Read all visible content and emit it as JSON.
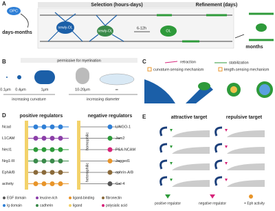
{
  "panels": {
    "a": {
      "letter": "A",
      "selection": "Selection (hours-days)",
      "refinement": "Refinement (days)",
      "opc": "OPC",
      "days_months": "days-months",
      "newly_ol_1": "newly-OL",
      "newly_ol_2": "newly-OL",
      "time": "6-12h",
      "ol": "OL",
      "months": "months"
    },
    "b": {
      "letter": "B",
      "permissive": "permissive for myelination",
      "sizes": [
        "0.1μm",
        "0.4μm",
        "1μm",
        "10-20μm",
        "∞"
      ],
      "curvature": "increasing curvature",
      "diameter": "increasing diameter"
    },
    "c": {
      "letter": "C",
      "retraction": "retraction",
      "stabilization": "stabilization",
      "curvature_sensing": "curvature-sensing mechanism",
      "length_sensing": "length-sensing mechanism"
    },
    "d": {
      "letter": "D",
      "positive_title": "positive regulators",
      "negative_title": "negative regulators",
      "positive": [
        "Ncad",
        "L1CAM",
        "Necl1",
        "Nrg1-III",
        "EphA/B",
        "activity"
      ],
      "negative": [
        "LINGO-1",
        "Jam2",
        "PSA-NCAM",
        "Jagged1",
        "ephrin-A/B",
        "Gal-4"
      ],
      "homophilic": "homophilic",
      "heterophilic": "heterophilic",
      "legend": [
        "EGF domain",
        "leucine-rich",
        "ligand-binding",
        "fibronectin",
        "Ig domain",
        "cadherin",
        "ligand",
        "polysialic acid"
      ]
    },
    "e": {
      "letter": "E",
      "attractive": "attractive target",
      "repulsive": "repulsive target",
      "positive_regulator": "positive regulator",
      "negative_regulator": "negative regulator",
      "eph": "+ Eph activity"
    }
  }
}
